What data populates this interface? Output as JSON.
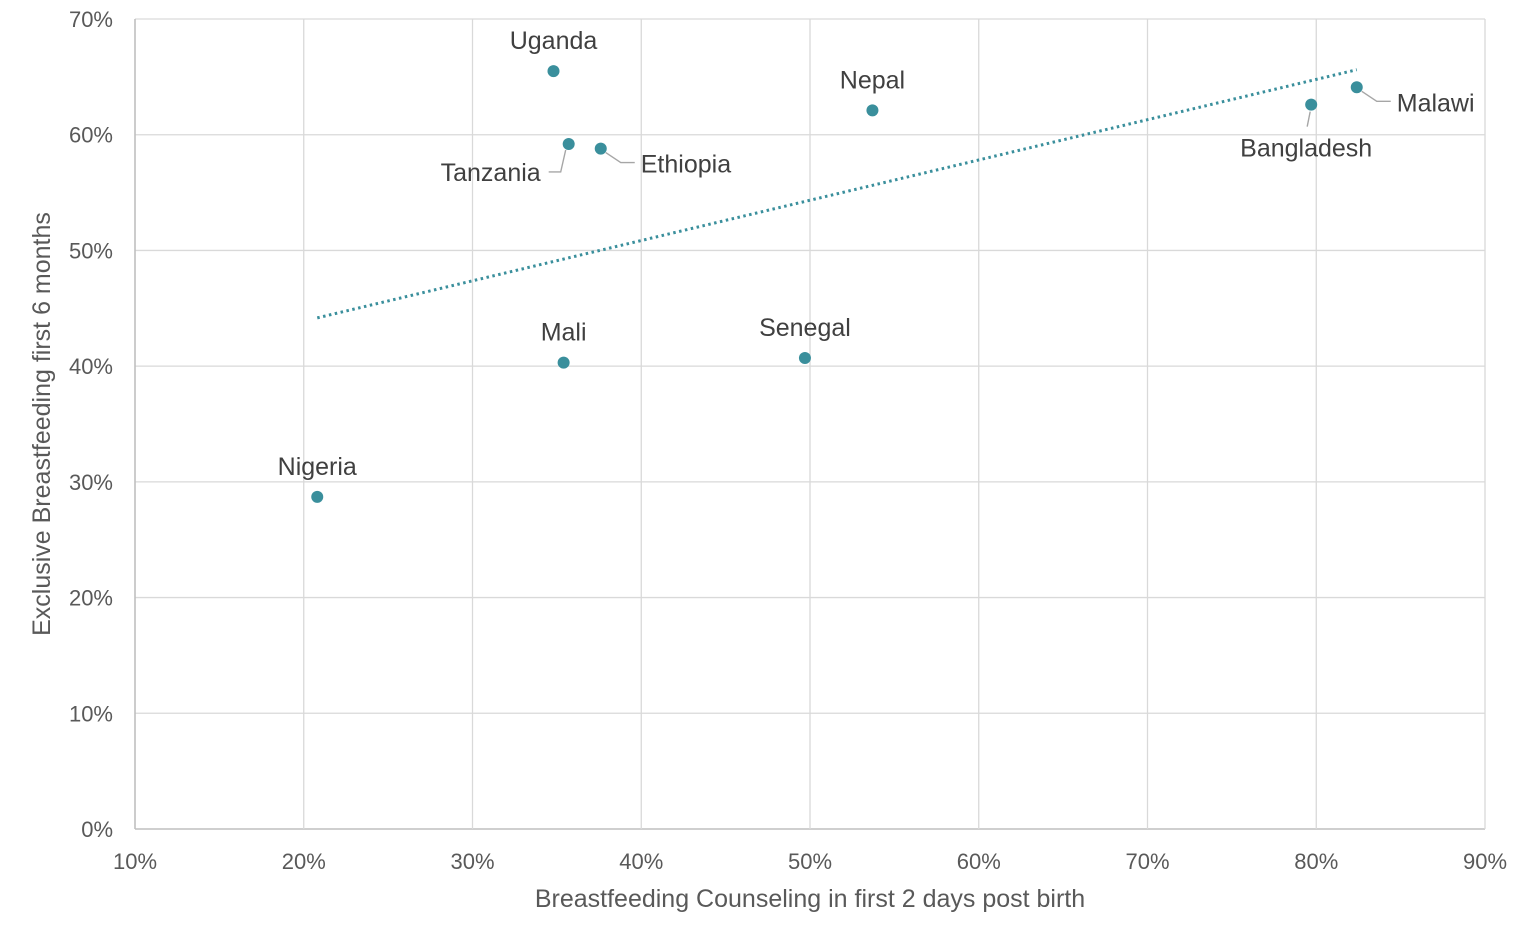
{
  "chart_data": {
    "type": "scatter",
    "title": "",
    "xlabel": "Breastfeeding Counseling in first 2 days post birth",
    "ylabel": "Exclusive Breastfeeding first 6 months",
    "xlim": [
      10,
      90
    ],
    "ylim": [
      0,
      70
    ],
    "x_ticks": [
      10,
      20,
      30,
      40,
      50,
      60,
      70,
      80,
      90
    ],
    "y_ticks": [
      0,
      10,
      20,
      30,
      40,
      50,
      60,
      70
    ],
    "x_tick_labels": [
      "10%",
      "20%",
      "30%",
      "40%",
      "50%",
      "60%",
      "70%",
      "80%",
      "90%"
    ],
    "y_tick_labels": [
      "0%",
      "10%",
      "20%",
      "30%",
      "40%",
      "50%",
      "60%",
      "70%"
    ],
    "grid": true,
    "marker_color": "#3a8f9c",
    "points": [
      {
        "label": "Uganda",
        "x": 34.8,
        "y": 65.5,
        "label_pos": "above"
      },
      {
        "label": "Tanzania",
        "x": 35.7,
        "y": 59.2,
        "label_pos": "left-leader"
      },
      {
        "label": "Ethiopia",
        "x": 37.6,
        "y": 58.8,
        "label_pos": "right-leader"
      },
      {
        "label": "Nepal",
        "x": 53.7,
        "y": 62.1,
        "label_pos": "above"
      },
      {
        "label": "Bangladesh",
        "x": 79.7,
        "y": 62.6,
        "label_pos": "below-leader"
      },
      {
        "label": "Malawi",
        "x": 82.4,
        "y": 64.1,
        "label_pos": "right-leader"
      },
      {
        "label": "Mali",
        "x": 35.4,
        "y": 40.3,
        "label_pos": "above"
      },
      {
        "label": "Senegal",
        "x": 49.7,
        "y": 40.7,
        "label_pos": "above"
      },
      {
        "label": "Nigeria",
        "x": 20.8,
        "y": 28.7,
        "label_pos": "above"
      }
    ],
    "trendline": {
      "type": "linear",
      "style": "dotted",
      "x_start": 20.8,
      "x_end": 82.4
    }
  }
}
